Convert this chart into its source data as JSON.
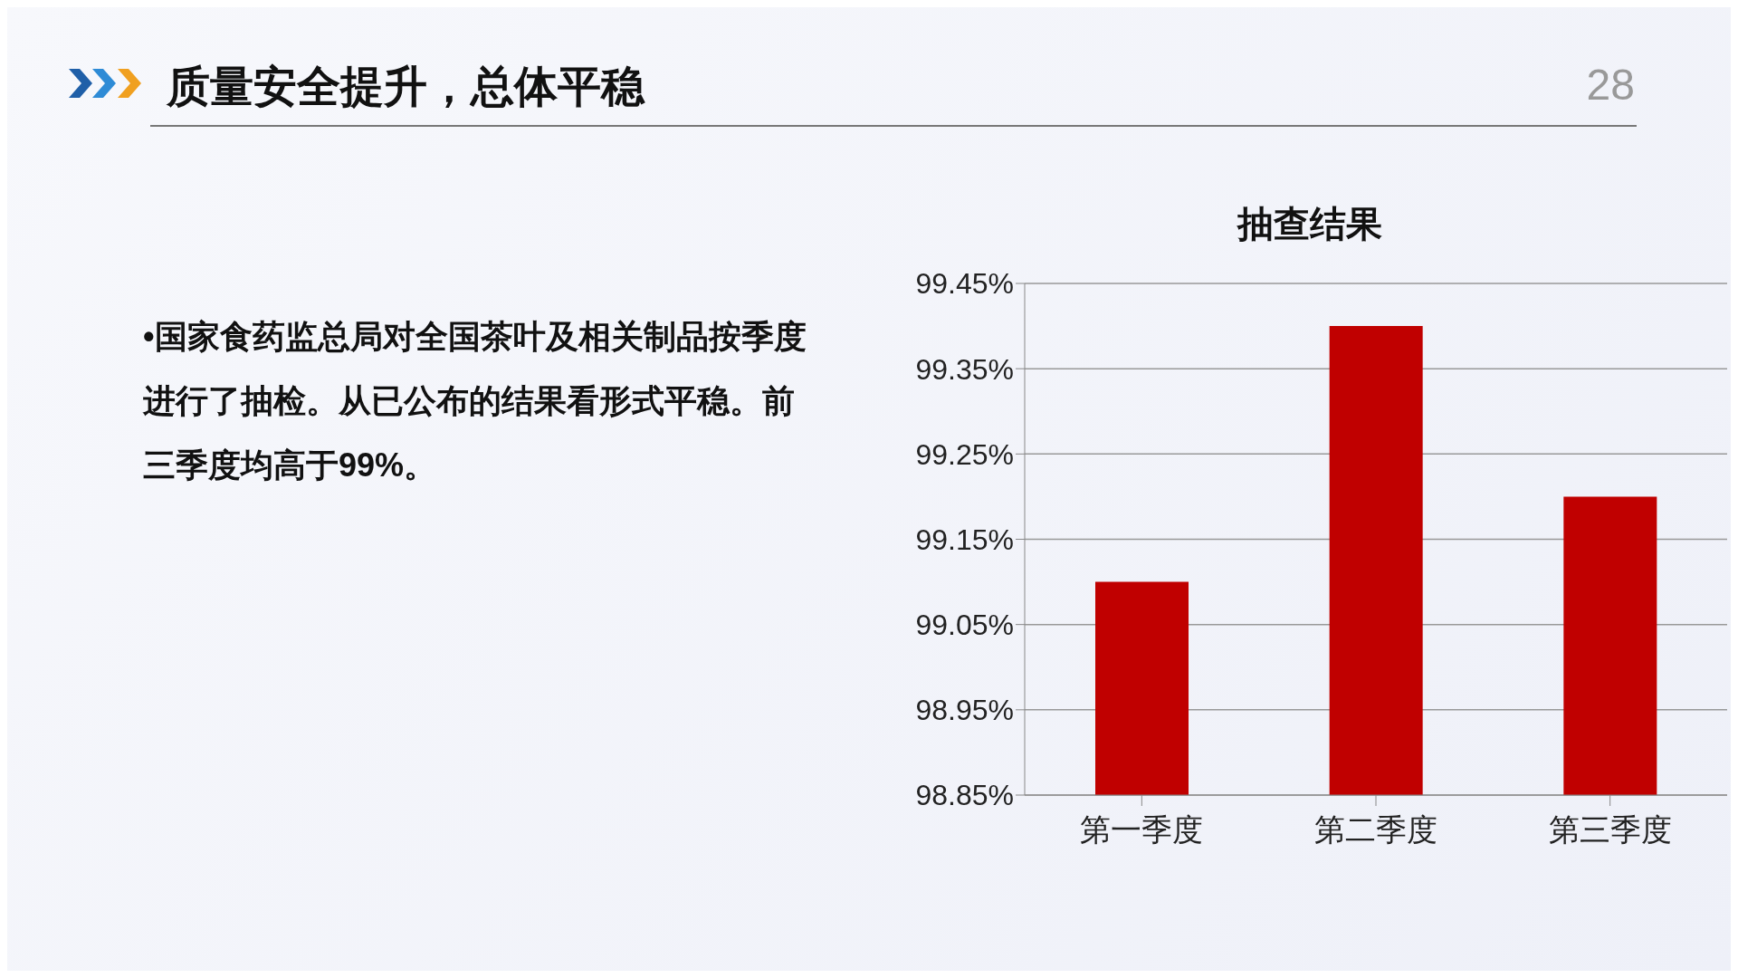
{
  "chart_data": {
    "type": "bar",
    "title": "抽查结果",
    "subtitle": "质量安全提升，总体平稳",
    "categories": [
      "第一季度",
      "第二季度",
      "第三季度"
    ],
    "values": [
      99.1,
      99.4,
      99.2
    ],
    "color": "#c00000",
    "ylim": [
      98.85,
      99.45
    ],
    "yticks": [
      {
        "value": 98.85,
        "label": "98.85%"
      },
      {
        "value": 98.95,
        "label": "98.95%"
      },
      {
        "value": 99.05,
        "label": "99.05%"
      },
      {
        "value": 99.15,
        "label": "99.15%"
      },
      {
        "value": 99.25,
        "label": "99.25%"
      },
      {
        "value": 99.35,
        "label": "99.35%"
      },
      {
        "value": 99.45,
        "label": "99.45%"
      }
    ],
    "grid": "y",
    "legend": false,
    "annotations": [
      "•国家食药监总局对全国茶叶及相关制品按季度进行了抽检。从已公布的结果看形式平稳。前三季度均高于99%。",
      "28"
    ]
  }
}
